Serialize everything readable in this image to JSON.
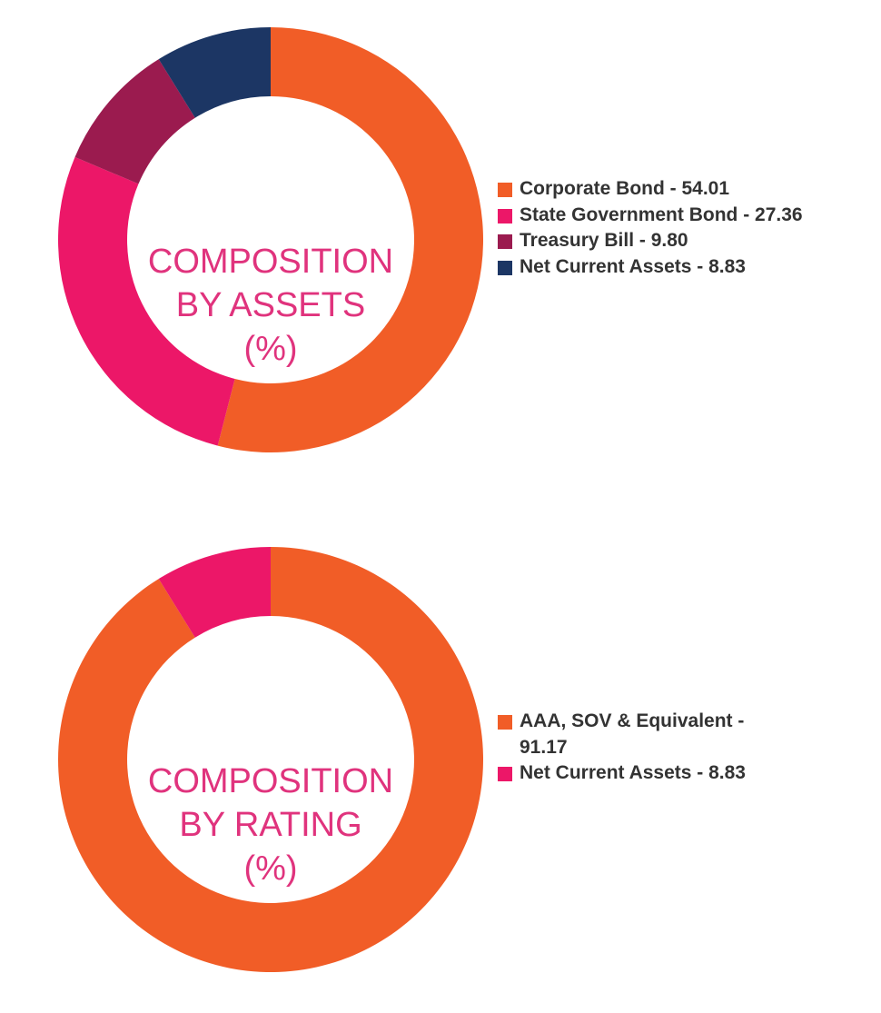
{
  "chart_data": [
    {
      "type": "pie",
      "title_lines": [
        "COMPOSITION",
        "BY ASSETS",
        "(%)"
      ],
      "slices": [
        {
          "label": "Corporate Bond - 54.01",
          "value": 54.01,
          "color": "#f15d27"
        },
        {
          "label": "State Government Bond - 27.36",
          "value": 27.36,
          "color": "#ec1768"
        },
        {
          "label": "Treasury Bill - 9.80",
          "value": 9.8,
          "color": "#9b1b4f"
        },
        {
          "label": "Net Current Assets - 8.83",
          "value": 8.83,
          "color": "#1c3664"
        }
      ],
      "legend_position": "right"
    },
    {
      "type": "pie",
      "title_lines": [
        "COMPOSITION",
        "BY RATING",
        "(%)"
      ],
      "slices": [
        {
          "label": "AAA, SOV & Equivalent - 91.17",
          "value": 91.17,
          "color": "#f15d27"
        },
        {
          "label": "Net Current Assets - 8.83",
          "value": 8.83,
          "color": "#ec1768"
        }
      ],
      "legend_position": "right"
    }
  ]
}
